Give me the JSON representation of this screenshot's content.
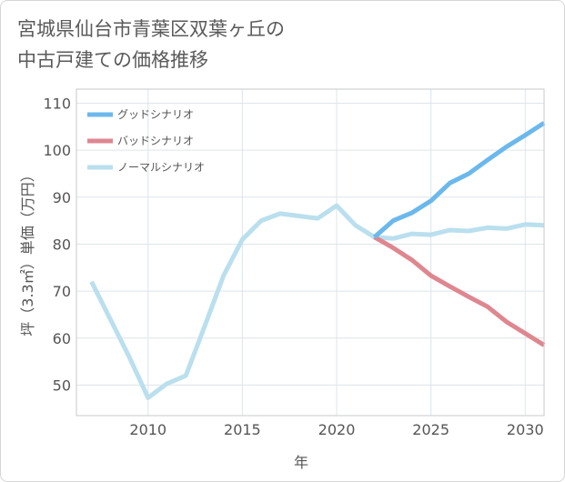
{
  "title_line1": "宮城県仙台市青葉区双葉ヶ丘の",
  "title_line2": "中古戸建ての価格推移",
  "chart_data": {
    "type": "line",
    "xlabel": "年",
    "ylabel": "坪（3.3㎡）単価（万円）",
    "xlim": [
      2006.2,
      2031
    ],
    "ylim": [
      43.5,
      113
    ],
    "xticks": [
      2010,
      2015,
      2020,
      2025,
      2030
    ],
    "yticks": [
      50,
      60,
      70,
      80,
      90,
      100,
      110
    ],
    "grid": true,
    "legend_position": "top-left",
    "series": [
      {
        "name": "グッドシナリオ",
        "color": "#6bb8ec",
        "x": [
          2022,
          2023,
          2024,
          2025,
          2026,
          2027,
          2028,
          2029,
          2030,
          2031
        ],
        "y": [
          81.5,
          85,
          86.7,
          89.2,
          93,
          95,
          97.9,
          100.7,
          103.2,
          105.8
        ]
      },
      {
        "name": "バッドシナリオ",
        "color": "#de8790",
        "x": [
          2022,
          2023,
          2024,
          2025,
          2026,
          2027,
          2028,
          2029,
          2030,
          2031
        ],
        "y": [
          81.5,
          79.2,
          76.6,
          73.3,
          71,
          68.8,
          66.7,
          63.5,
          61,
          58.5
        ]
      },
      {
        "name": "ノーマルシナリオ",
        "color": "#badfee",
        "x": [
          2007,
          2008,
          2009,
          2010,
          2011,
          2012,
          2013,
          2014,
          2015,
          2016,
          2017,
          2018,
          2019,
          2020,
          2021,
          2022,
          2023,
          2024,
          2025,
          2026,
          2027,
          2028,
          2029,
          2030,
          2031
        ],
        "y": [
          72,
          64,
          56,
          47.3,
          50.3,
          52,
          62.5,
          73.3,
          81,
          85,
          86.5,
          86,
          85.5,
          88.2,
          84,
          81.5,
          81.2,
          82.2,
          82,
          83,
          82.8,
          83.5,
          83.3,
          84.2,
          84
        ]
      }
    ]
  }
}
